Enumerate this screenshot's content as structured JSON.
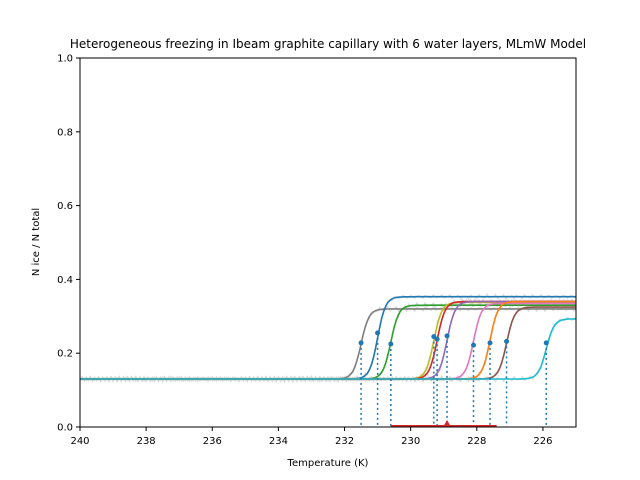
{
  "chart_data": {
    "type": "line",
    "title": "Heterogeneous freezing in Ibeam graphite capillary with 6 water layers, MLmW Model",
    "xlabel": "Temperature (K)",
    "ylabel": "N ice / N total",
    "xlim": [
      240,
      225
    ],
    "ylim": [
      0.0,
      1.0
    ],
    "x_ticks": [
      {
        "value": 240,
        "label": "240"
      },
      {
        "value": 238,
        "label": "238"
      },
      {
        "value": 236,
        "label": "236"
      },
      {
        "value": 234,
        "label": "234"
      },
      {
        "value": 232,
        "label": "232"
      },
      {
        "value": 230,
        "label": "230"
      },
      {
        "value": 228,
        "label": "228"
      },
      {
        "value": 226,
        "label": "226"
      }
    ],
    "y_ticks": [
      {
        "value": 0.0,
        "label": "0.0"
      },
      {
        "value": 0.2,
        "label": "0.2"
      },
      {
        "value": 0.4,
        "label": "0.4"
      },
      {
        "value": 0.6,
        "label": "0.6"
      },
      {
        "value": 0.8,
        "label": "0.8"
      },
      {
        "value": 1.0,
        "label": "1.0"
      }
    ],
    "grid": false,
    "baseline": 0.13,
    "series": [
      {
        "color": "#7f7f7f",
        "freeze_T": 231.5,
        "plateau": 0.32,
        "marker_y": 0.228
      },
      {
        "color": "#1f77b4",
        "freeze_T": 231.0,
        "plateau": 0.353,
        "marker_y": 0.255
      },
      {
        "color": "#2ca02c",
        "freeze_T": 230.6,
        "plateau": 0.33,
        "marker_y": 0.225
      },
      {
        "color": "#bcbd22",
        "freeze_T": 229.3,
        "plateau": 0.338,
        "marker_y": 0.245
      },
      {
        "color": "#d62728",
        "freeze_T": 229.2,
        "plateau": 0.34,
        "marker_y": 0.238
      },
      {
        "color": "#9467bd",
        "freeze_T": 228.9,
        "plateau": 0.34,
        "marker_y": 0.247
      },
      {
        "color": "#e377c2",
        "freeze_T": 228.1,
        "plateau": 0.335,
        "marker_y": 0.222
      },
      {
        "color": "#ff7f0e",
        "freeze_T": 227.6,
        "plateau": 0.34,
        "marker_y": 0.228
      },
      {
        "color": "#8c564b",
        "freeze_T": 227.1,
        "plateau": 0.325,
        "marker_y": 0.232
      },
      {
        "color": "#17becf",
        "freeze_T": 225.9,
        "plateau": 0.293,
        "marker_y": 0.228
      }
    ],
    "marker_color": "#1f77b4",
    "raw_data_color": "#d3d3d3",
    "mean_freeze_T": 228.9,
    "freeze_range": [
      230.6,
      227.4
    ],
    "mean_marker_color": "#d62728"
  }
}
